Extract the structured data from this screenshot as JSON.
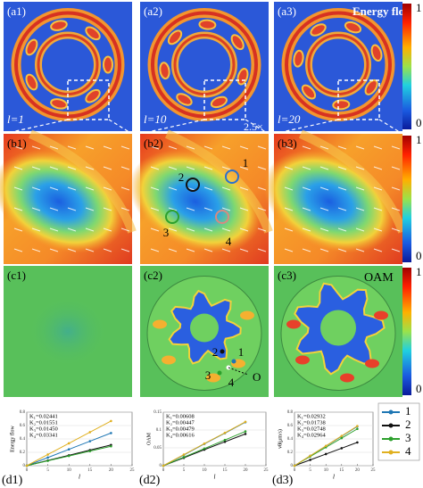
{
  "row_a": {
    "panels": [
      {
        "label": "(a1)",
        "l_label": "l=1"
      },
      {
        "label": "(a2)",
        "l_label": "l=10"
      },
      {
        "label": "(a3)",
        "l_label": "l=20"
      }
    ],
    "title": "Energy flow",
    "zoom": "2.5×",
    "colorbar": {
      "max": 1,
      "min": 0
    }
  },
  "row_b": {
    "panels": [
      {
        "label": "(b1)"
      },
      {
        "label": "(b2)"
      },
      {
        "label": "(b3)"
      }
    ],
    "markers": [
      "1",
      "2",
      "3",
      "4"
    ],
    "colorbar": {
      "max": 1,
      "min": 0
    }
  },
  "row_c": {
    "panels": [
      {
        "label": "(c1)"
      },
      {
        "label": "(c2)"
      },
      {
        "label": "(c3)"
      }
    ],
    "title": "OAM",
    "markers": [
      "1",
      "2",
      "3",
      "4"
    ],
    "origin": "O",
    "colorbar": {
      "max": 1,
      "min": 0
    }
  },
  "row_d": {
    "legend": [
      {
        "name": "1",
        "color": "#1f77b4"
      },
      {
        "name": "2",
        "color": "#111111"
      },
      {
        "name": "3",
        "color": "#2ca02c"
      },
      {
        "name": "4",
        "color": "#e0b020"
      }
    ],
    "plots": [
      {
        "label": "(d1)",
        "ylabel": "Energy flow",
        "xlabel": "l",
        "x": [
          0,
          5,
          10,
          15,
          20
        ],
        "xlim": [
          0,
          25
        ],
        "xticks": [
          0,
          5,
          10,
          15,
          20,
          25
        ],
        "ylim": [
          0,
          0.8
        ],
        "yticks": [
          0,
          0.2,
          0.4,
          0.6,
          0.8
        ],
        "annotations": [
          "K₁=0.02441",
          "K₂=0.01551",
          "K₃=0.01450",
          "K₄=0.03341"
        ],
        "series": [
          {
            "color": "#1f77b4",
            "values": [
              0,
              0.122,
              0.244,
              0.366,
              0.488
            ]
          },
          {
            "color": "#111111",
            "values": [
              0,
              0.078,
              0.155,
              0.233,
              0.31
            ]
          },
          {
            "color": "#2ca02c",
            "values": [
              0,
              0.073,
              0.145,
              0.218,
              0.29
            ]
          },
          {
            "color": "#e0b020",
            "values": [
              0,
              0.167,
              0.334,
              0.501,
              0.668
            ]
          }
        ]
      },
      {
        "label": "(d2)",
        "ylabel": "OAM",
        "xlabel": "l",
        "x": [
          0,
          5,
          10,
          15,
          20
        ],
        "xlim": [
          0,
          25
        ],
        "xticks": [
          0,
          5,
          10,
          15,
          20,
          25
        ],
        "ylim": [
          0,
          0.15
        ],
        "yticks": [
          0,
          0.05,
          0.1,
          0.15
        ],
        "annotations": [
          "K₁=0.00608",
          "K₂=0.00447",
          "K₃=0.00479",
          "K₄=0.00616"
        ],
        "series": [
          {
            "color": "#1f77b4",
            "values": [
              0,
              0.03,
              0.061,
              0.091,
              0.122
            ]
          },
          {
            "color": "#111111",
            "values": [
              0,
              0.022,
              0.045,
              0.067,
              0.089
            ]
          },
          {
            "color": "#2ca02c",
            "values": [
              0,
              0.024,
              0.048,
              0.072,
              0.096
            ]
          },
          {
            "color": "#e0b020",
            "values": [
              0,
              0.031,
              0.062,
              0.092,
              0.123
            ]
          }
        ]
      },
      {
        "label": "(d3)",
        "ylabel": "vθ(μm/s)",
        "xlabel": "l",
        "x": [
          0,
          5,
          10,
          15,
          20
        ],
        "xlim": [
          0,
          25
        ],
        "xticks": [
          0,
          5,
          10,
          15,
          20,
          25
        ],
        "ylim": [
          0,
          0.8
        ],
        "yticks": [
          0,
          0.2,
          0.4,
          0.6,
          0.8
        ],
        "annotations": [
          "K₁=0.02932",
          "K₂=0.01738",
          "K₃=0.02748",
          "K₄=0.02964"
        ],
        "series": [
          {
            "color": "#1f77b4",
            "values": [
              0,
              0.147,
              0.293,
              0.44,
              0.586
            ]
          },
          {
            "color": "#111111",
            "values": [
              0,
              0.087,
              0.174,
              0.261,
              0.348
            ]
          },
          {
            "color": "#2ca02c",
            "values": [
              0,
              0.137,
              0.275,
              0.412,
              0.55
            ]
          },
          {
            "color": "#e0b020",
            "values": [
              0,
              0.148,
              0.296,
              0.445,
              0.593
            ]
          }
        ]
      }
    ]
  }
}
